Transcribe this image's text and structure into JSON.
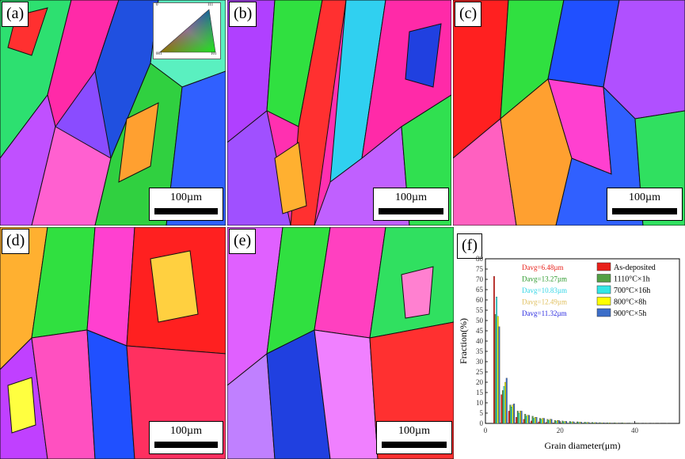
{
  "panels": [
    {
      "label": "(a)",
      "scale": "100µm"
    },
    {
      "label": "(b)",
      "scale": "100µm"
    },
    {
      "label": "(c)",
      "scale": "100µm"
    },
    {
      "label": "(d)",
      "scale": "100µm"
    },
    {
      "label": "(e)",
      "scale": "100µm"
    }
  ],
  "ipf_key": {
    "corner_labels": [
      "0",
      "111",
      "001",
      "101"
    ]
  },
  "chart_data": {
    "type": "bar",
    "panel_label": "(f)",
    "xlabel": "Grain diameter(μm)",
    "ylabel": "Fraction(%)",
    "xlim": [
      0,
      52
    ],
    "ylim": [
      0,
      80
    ],
    "xticks": [
      0,
      20,
      40
    ],
    "yticks": [
      0,
      5,
      10,
      15,
      20,
      25,
      30,
      35,
      40,
      45,
      50,
      55,
      60,
      65,
      70,
      75,
      80
    ],
    "bin_centers": [
      3,
      5,
      7,
      9,
      11,
      13,
      15,
      17,
      19,
      21,
      23,
      25,
      27,
      29,
      31,
      33,
      35,
      37,
      39,
      41,
      43,
      45,
      47,
      49
    ],
    "series": [
      {
        "name": "As-deposited",
        "color": "#e8201a",
        "davg": "Davg=6.48µm",
        "davg_color": "#e8201a",
        "values": [
          71.5,
          14.0,
          6.0,
          3.0,
          2.0,
          1.2,
          0.8,
          0.5,
          0.3,
          0.2,
          0.1,
          0.1,
          0,
          0,
          0,
          0,
          0,
          0,
          0,
          0,
          0,
          0,
          0,
          0
        ]
      },
      {
        "name": "1110°C×1h",
        "color": "#52a044",
        "davg": "Davg=13.27µm",
        "davg_color": "#2e9a2e",
        "values": [
          53.0,
          16.0,
          9.0,
          6.0,
          4.5,
          3.5,
          2.5,
          2.0,
          1.5,
          1.2,
          1.0,
          0.8,
          0.6,
          0.5,
          0.4,
          0.3,
          0.3,
          0.3,
          0.2,
          0.2,
          0.1,
          0.1,
          0.1,
          0.1
        ]
      },
      {
        "name": "700°C×16h",
        "color": "#33e6e6",
        "davg": "Davg=10.83µm",
        "davg_color": "#33d6e6",
        "values": [
          61.5,
          18.0,
          8.0,
          5.0,
          3.5,
          2.5,
          2.0,
          1.5,
          1.0,
          0.8,
          0.6,
          0.5,
          0.4,
          0.3,
          0.2,
          0.2,
          0.1,
          0.1,
          0.1,
          0,
          0,
          0,
          0,
          0
        ]
      },
      {
        "name": "800°C×8h",
        "color": "#ffff00",
        "davg": "Davg=12.49µm",
        "davg_color": "#e0c060",
        "values": [
          52.0,
          20.0,
          9.0,
          6.0,
          4.0,
          3.0,
          2.5,
          2.0,
          1.5,
          1.0,
          0.8,
          0.7,
          0.5,
          0.4,
          0.3,
          0.3,
          0.2,
          0.2,
          0.1,
          0.1,
          0.1,
          0.1,
          0,
          0
        ]
      },
      {
        "name": "900°C×5h",
        "color": "#3c6ec8",
        "davg": "Davg=11.32µm",
        "davg_color": "#2a2ae0",
        "values": [
          47.0,
          22.0,
          9.5,
          6.0,
          4.0,
          3.0,
          2.5,
          2.0,
          1.5,
          1.0,
          0.8,
          0.6,
          0.5,
          0.4,
          0.3,
          0.2,
          0.2,
          0.1,
          0.1,
          0.1,
          0.1,
          0,
          0,
          0
        ]
      }
    ]
  }
}
